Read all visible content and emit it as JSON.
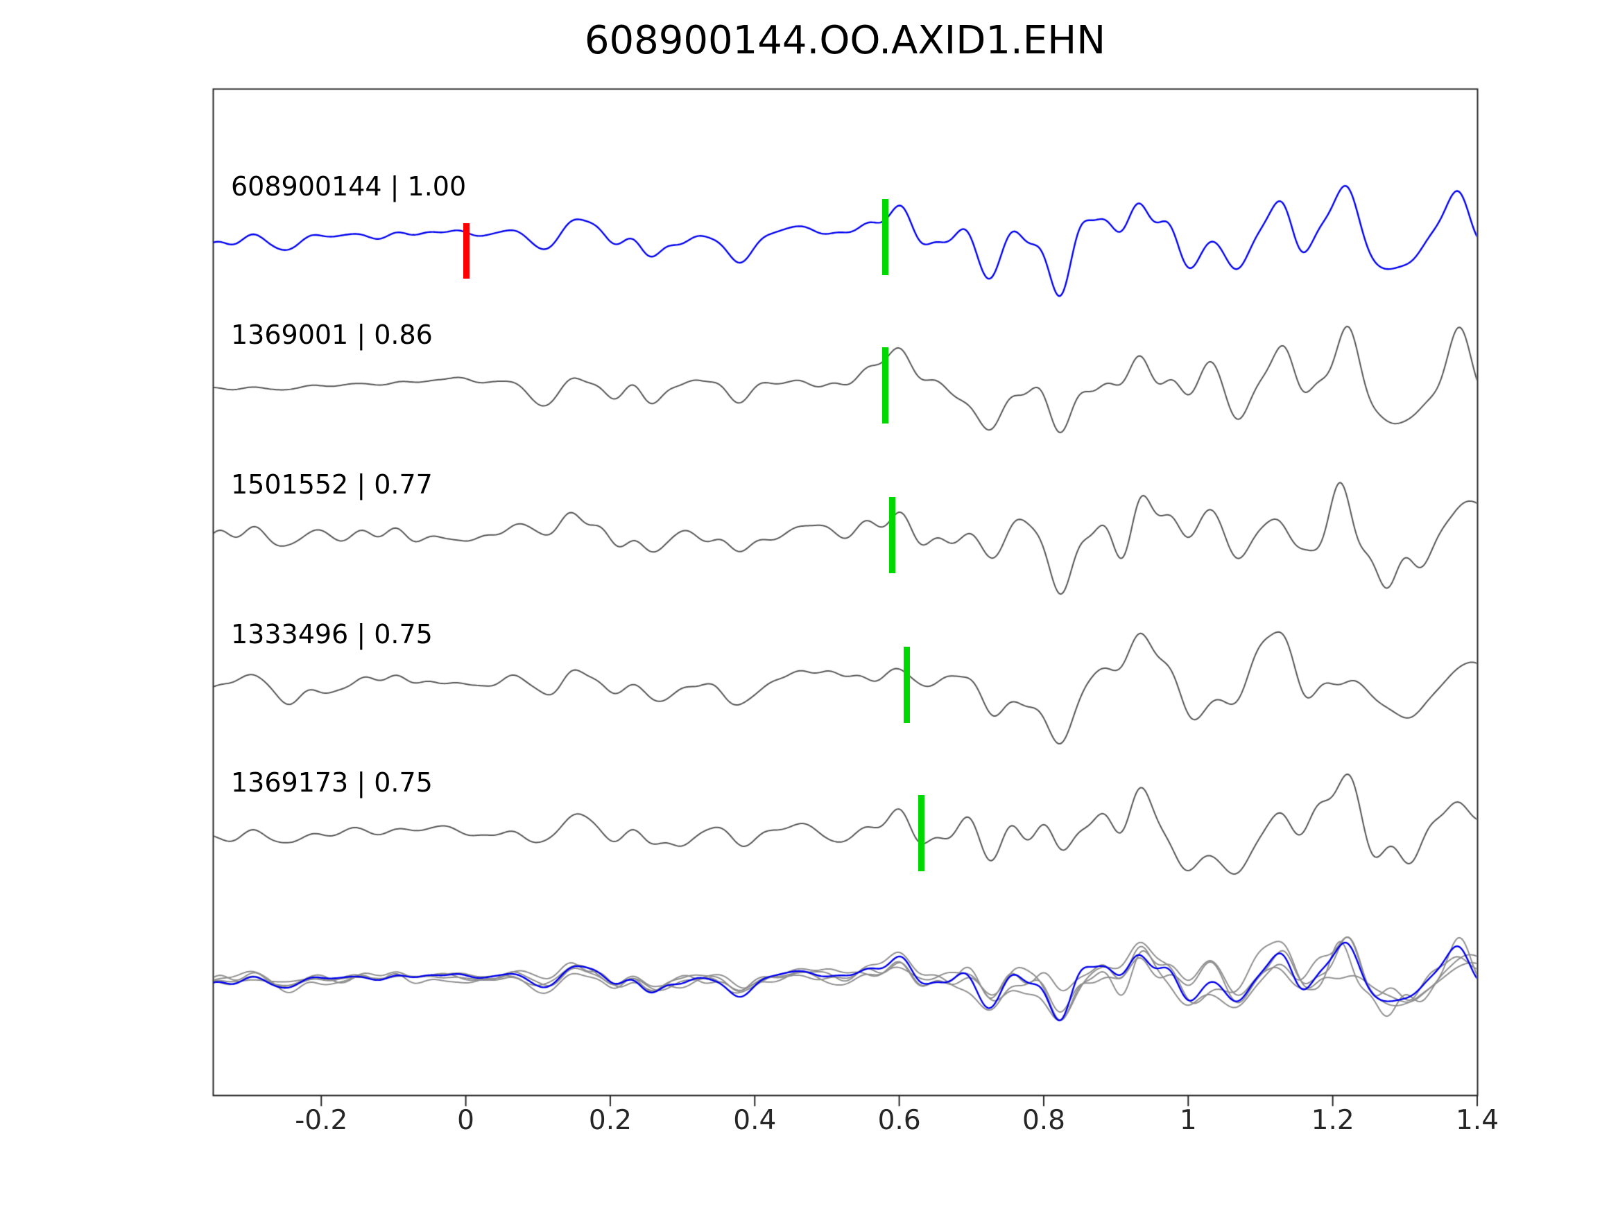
{
  "title": "608900144.OO.AXID1.EHN",
  "chart_data": {
    "type": "line",
    "title": "608900144.OO.AXID1.EHN",
    "xlabel": "",
    "ylabel": "",
    "grid": false,
    "legend": false,
    "xlim": [
      -0.35,
      1.4
    ],
    "x_ticks": [
      -0.2,
      0,
      0.2,
      0.4,
      0.6,
      0.8,
      1,
      1.2,
      1.4
    ],
    "x_tick_labels": [
      "-0.2",
      "0",
      "0.2",
      "0.4",
      "0.6",
      "0.8",
      "1",
      "1.2",
      "1.4"
    ],
    "traces": [
      {
        "id": "608900144",
        "label": "608900144 | 1.00",
        "correlation": 1.0,
        "color": "#0000ee",
        "pick": {
          "x": 0.58,
          "color": "#00d900"
        },
        "origin": {
          "x": 0.0,
          "color": "#ff0000"
        }
      },
      {
        "id": "1369001",
        "label": "1369001 | 0.86",
        "correlation": 0.86,
        "color": "#555555",
        "pick": {
          "x": 0.58,
          "color": "#00d900"
        }
      },
      {
        "id": "1501552",
        "label": "1501552 | 0.77",
        "correlation": 0.77,
        "color": "#555555",
        "pick": {
          "x": 0.59,
          "color": "#00d900"
        }
      },
      {
        "id": "1333496",
        "label": "1333496 | 0.75",
        "correlation": 0.75,
        "color": "#555555",
        "pick": {
          "x": 0.61,
          "color": "#00d900"
        }
      },
      {
        "id": "1369173",
        "label": "1369173 | 0.75",
        "correlation": 0.75,
        "color": "#555555",
        "pick": {
          "x": 0.63,
          "color": "#00d900"
        }
      }
    ],
    "overlay": {
      "gray_color": "#8f8f8f",
      "highlight_color": "#0000ee"
    },
    "axis_color": "#262626"
  }
}
